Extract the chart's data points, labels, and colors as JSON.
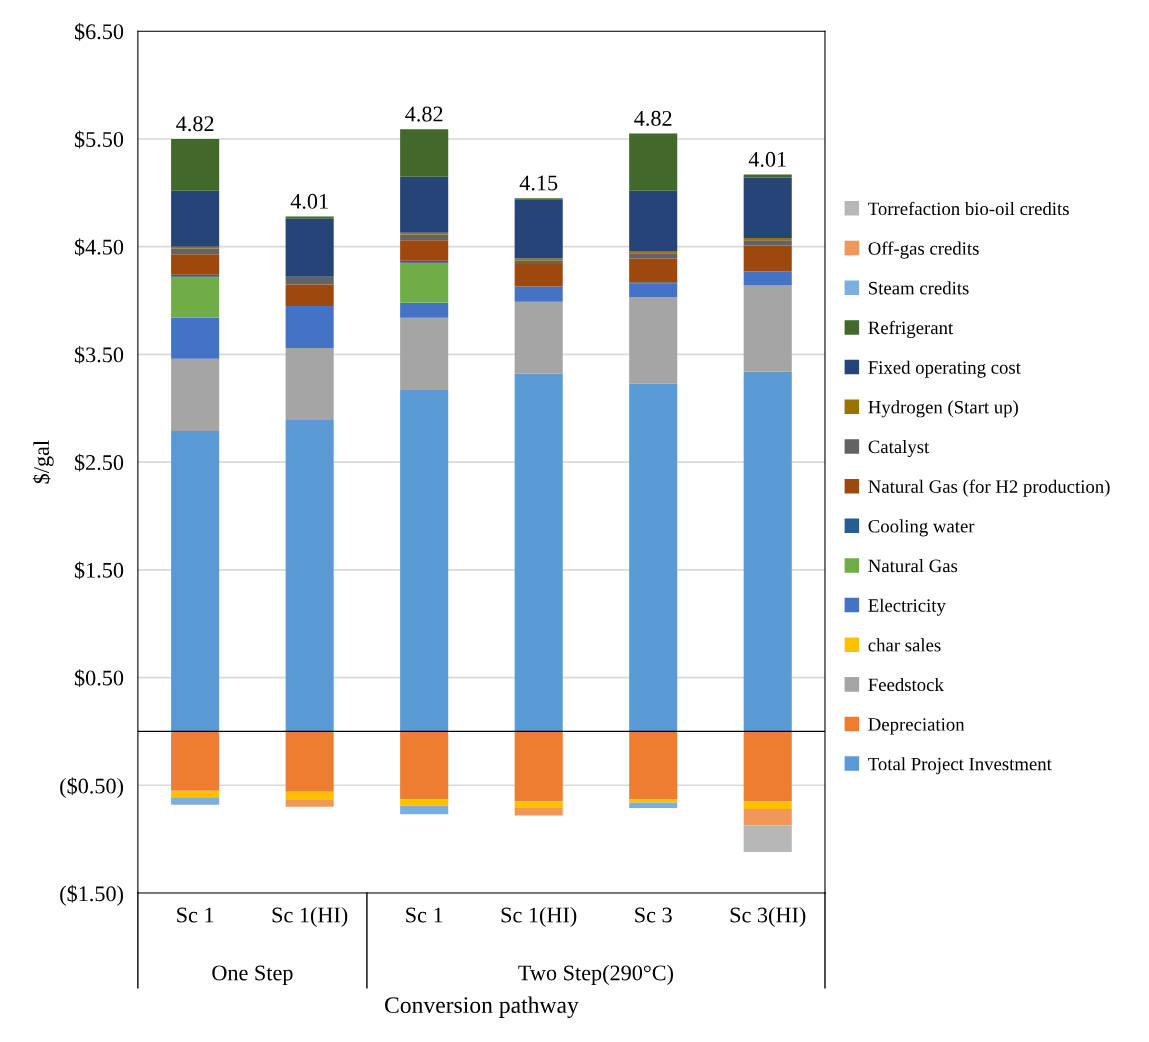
{
  "chart_data": {
    "type": "bar",
    "stacked": true,
    "xlabel": "Conversion pathway",
    "ylabel": "$/gal",
    "categories": [
      "Sc 1",
      "Sc 1(HI)",
      "Sc 1",
      "Sc 1(HI)",
      "Sc 3",
      "Sc 3(HI)"
    ],
    "annotations": [
      "One Step",
      "Two Step(290°C)"
    ],
    "series": [
      {
        "name": "Total Project Investment",
        "color": "#5b9bd5",
        "values": [
          2.79,
          2.89,
          3.17,
          3.32,
          3.23,
          3.34
        ]
      },
      {
        "name": "Depreciation",
        "color": "#ed7d31",
        "values": [
          -0.55,
          -0.56,
          -0.63,
          -0.65,
          -0.63,
          -0.65
        ]
      },
      {
        "name": "Feedstock",
        "color": "#a5a5a5",
        "values": [
          0.67,
          0.67,
          0.67,
          0.67,
          0.8,
          0.8
        ]
      },
      {
        "name": "char sales",
        "color": "#ffc000",
        "values": [
          -0.06,
          -0.07,
          -0.06,
          -0.06,
          -0.03,
          -0.07
        ]
      },
      {
        "name": "Electricity",
        "color": "#4472c4",
        "values": [
          0.38,
          0.39,
          0.14,
          0.14,
          0.13,
          0.13
        ]
      },
      {
        "name": "Natural Gas",
        "color": "#70ad47",
        "values": [
          0.38,
          null,
          0.37,
          null,
          null,
          null
        ]
      },
      {
        "name": "Cooling water",
        "color": "#255e91",
        "values": [
          0.02,
          null,
          0.02,
          null,
          0.01,
          null
        ]
      },
      {
        "name": "Natural Gas (for H2 production)",
        "color": "#9e480e",
        "values": [
          0.19,
          0.2,
          0.19,
          0.21,
          0.22,
          0.24
        ]
      },
      {
        "name": "Catalyst",
        "color": "#636363",
        "values": [
          0.05,
          0.07,
          0.05,
          0.03,
          0.05,
          0.05
        ]
      },
      {
        "name": "Hydrogen (Start up)",
        "color": "#997300",
        "values": [
          0.02,
          null,
          0.02,
          0.02,
          0.02,
          0.02
        ]
      },
      {
        "name": "Fixed operating cost",
        "color": "#264478",
        "values": [
          0.52,
          0.54,
          0.52,
          0.55,
          0.56,
          0.56
        ]
      },
      {
        "name": "Refrigerant",
        "color": "#43682b",
        "values": [
          0.48,
          0.02,
          0.44,
          0.01,
          0.53,
          0.03
        ]
      },
      {
        "name": "Steam credits",
        "color": "#7cafdd",
        "values": [
          -0.07,
          null,
          -0.08,
          null,
          -0.05,
          null
        ]
      },
      {
        "name": "Off-gas credits",
        "color": "#f1975a",
        "values": [
          null,
          -0.07,
          null,
          -0.07,
          null,
          -0.15
        ]
      },
      {
        "name": "Torrefaction bio-oil credits",
        "color": "#b7b7b7",
        "values": [
          null,
          null,
          null,
          null,
          null,
          -0.25
        ]
      }
    ],
    "totals": [
      "4.82",
      "4.01",
      "4.82",
      "4.15",
      "4.82",
      "4.01"
    ],
    "ylim": [
      -1.5,
      6.5
    ],
    "yticks": [
      {
        "value": 6.5,
        "label": "$6.50"
      },
      {
        "value": 5.5,
        "label": "$5.50"
      },
      {
        "value": 4.5,
        "label": "$4.50"
      },
      {
        "value": 3.5,
        "label": "$3.50"
      },
      {
        "value": 2.5,
        "label": "$2.50"
      },
      {
        "value": 1.5,
        "label": "$1.50"
      },
      {
        "value": 0.5,
        "label": "$0.50"
      },
      {
        "value": -0.5,
        "label": "($0.50)"
      },
      {
        "value": -1.5,
        "label": "($1.50)"
      }
    ],
    "grid": "y",
    "legend": "right"
  }
}
